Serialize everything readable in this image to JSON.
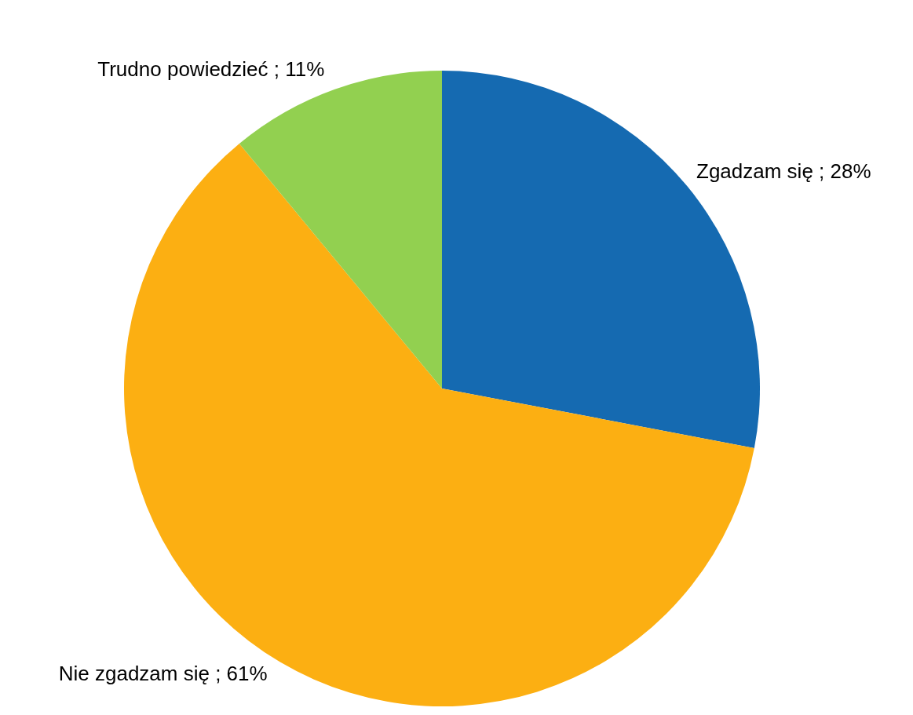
{
  "chart_data": {
    "type": "pie",
    "categories": [
      "Zgadzam się",
      "Nie zgadzam się",
      "Trudno powiedzieć"
    ],
    "values": [
      28,
      61,
      11
    ],
    "colors": [
      "#156ab1",
      "#fcaf12",
      "#92d050"
    ],
    "value_labels": [
      "28%",
      "61%",
      "11%"
    ],
    "legend": false
  }
}
